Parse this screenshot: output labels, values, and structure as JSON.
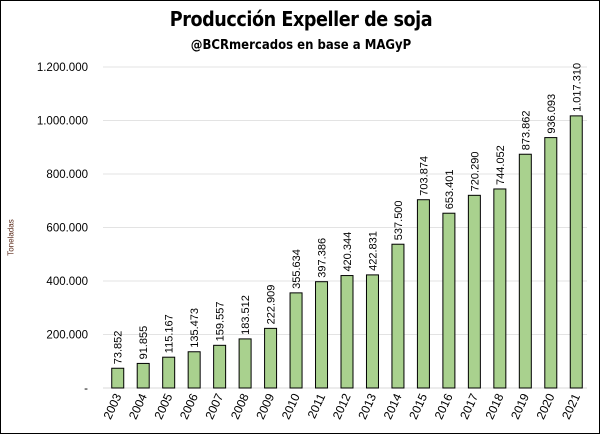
{
  "chart_data": {
    "type": "bar",
    "title": "Producción Expeller de soja",
    "subtitle": "@BCRmercados en base a MAGyP",
    "xlabel": "",
    "ylabel": "Toneladas",
    "categories": [
      "2003",
      "2004",
      "2005",
      "2006",
      "2007",
      "2008",
      "2009",
      "2010",
      "2011",
      "2012",
      "2013",
      "2014",
      "2015",
      "2016",
      "2017",
      "2018",
      "2019",
      "2020",
      "2021"
    ],
    "values": [
      73852,
      91855,
      115167,
      135473,
      159557,
      183512,
      222909,
      355634,
      397386,
      420344,
      422831,
      537500,
      703874,
      653401,
      720290,
      744052,
      873862,
      936093,
      1017310
    ],
    "data_labels": [
      "73.852",
      "91.855",
      "115.167",
      "135.473",
      "159.557",
      "183.512",
      "222.909",
      "355.634",
      "397.386",
      "420.344",
      "422.831",
      "537.500",
      "703.874",
      "653.401",
      "720.290",
      "744.052",
      "873.862",
      "936.093",
      "1.017.310"
    ],
    "ylim": [
      0,
      1200000
    ],
    "yticks": [
      0,
      200000,
      400000,
      600000,
      800000,
      1000000,
      1200000
    ],
    "ytick_labels": [
      "-",
      "200.000",
      "400.000",
      "600.000",
      "800.000",
      "1.000.000",
      "1.200.000"
    ],
    "grid": true,
    "legend": "none",
    "bar_color": "#a9d18e",
    "bar_edge_color": "#000000"
  }
}
